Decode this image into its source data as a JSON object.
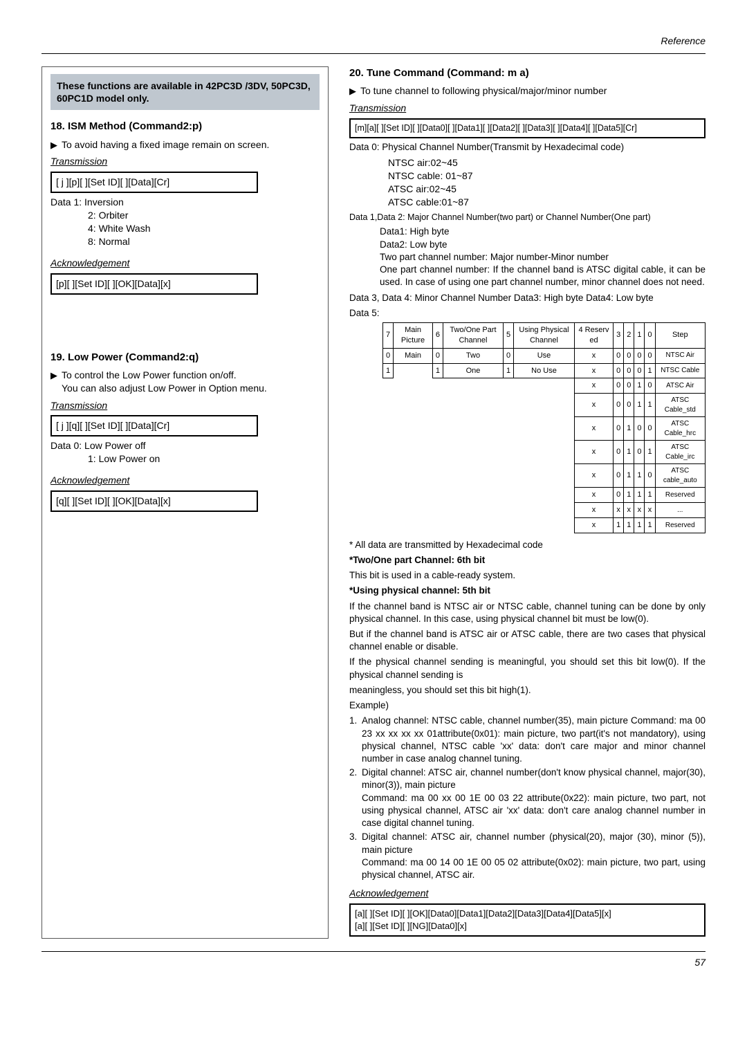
{
  "reference": "Reference",
  "left": {
    "note": "These functions are available in 42PC3D /3DV, 50PC3D, 60PC1D model only.",
    "section18": {
      "title": "18. ISM Method (Command2:p)",
      "desc": "To avoid having a fixed image remain on screen.",
      "transmission_label": "Transmission",
      "syntax_tx": "[ j ][p][  ][Set ID][  ][Data][Cr]",
      "data_header": "Data  1: Inversion",
      "data_items": [
        "2: Orbiter",
        "4: White Wash",
        "8: Normal"
      ],
      "ack_label": "Acknowledgement",
      "syntax_ack": "[p][  ][Set ID][  ][OK][Data][x]"
    },
    "section19": {
      "title": "19. Low Power (Command2:q)",
      "desc1": "To control the Low Power function on/off.",
      "desc2": "You can also adjust Low Power in Option menu.",
      "transmission_label": "Transmission",
      "syntax_tx": "[ j ][q][  ][Set ID][  ][Data][Cr]",
      "data_header": "Data  0: Low Power off",
      "data_items": [
        "1: Low Power on"
      ],
      "ack_label": "Acknowledgement",
      "syntax_ack": "[q][  ][Set ID][  ][OK][Data][x]"
    }
  },
  "right": {
    "title": "20. Tune Command (Command: m a)",
    "desc": "To tune channel to following physical/major/minor number",
    "transmission_label": "Transmission",
    "syntax_tx": "[m][a][ ][Set ID][ ][Data0][ ][Data1][ ][Data2][ ][Data3][ ][Data4][ ][Data5][Cr]",
    "data0_header": "Data  0: Physical Channel Number(Transmit by Hexadecimal code)",
    "data0_items": [
      "NTSC air:02~45",
      "NTSC cable: 01~87",
      "ATSC air:02~45",
      "ATSC cable:01~87"
    ],
    "data12_header": "Data 1,Data 2: Major Channel Number(two part) or Channel Number(One part)",
    "data12_items": [
      "Data1: High byte",
      "Data2: Low byte",
      "Two part channel number: Major number-Minor number",
      "One part channel number: If the channel band is ATSC digital cable, it can be used. In case of using one part channel number, minor channel does not need."
    ],
    "data34": "Data 3, Data 4: Minor Channel Number Data3: High byte Data4: Low byte",
    "data5": "Data 5:",
    "table": {
      "header_row1": [
        "7",
        "Main Picture",
        "6",
        "Two/One Part Channel",
        "5",
        "Using Physical Channel",
        "4 Reserv ed",
        "3",
        "2",
        "1",
        "0",
        "Step"
      ],
      "rows": [
        [
          "0",
          "Main",
          "0",
          "Two",
          "0",
          "Use",
          "x",
          "0",
          "0",
          "0",
          "0",
          "NTSC Air"
        ],
        [
          "1",
          "",
          "1",
          "One",
          "1",
          "No Use",
          "x",
          "0",
          "0",
          "0",
          "1",
          "NTSC Cable"
        ],
        [
          "",
          "",
          "",
          "",
          "",
          "",
          "x",
          "0",
          "0",
          "1",
          "0",
          "ATSC Air"
        ],
        [
          "",
          "",
          "",
          "",
          "",
          "",
          "x",
          "0",
          "0",
          "1",
          "1",
          "ATSC Cable_std"
        ],
        [
          "",
          "",
          "",
          "",
          "",
          "",
          "x",
          "0",
          "1",
          "0",
          "0",
          "ATSC Cable_hrc"
        ],
        [
          "",
          "",
          "",
          "",
          "",
          "",
          "x",
          "0",
          "1",
          "0",
          "1",
          "ATSC Cable_irc"
        ],
        [
          "",
          "",
          "",
          "",
          "",
          "",
          "x",
          "0",
          "1",
          "1",
          "0",
          "ATSC cable_auto"
        ],
        [
          "",
          "",
          "",
          "",
          "",
          "",
          "x",
          "0",
          "1",
          "1",
          "1",
          "Reserved"
        ],
        [
          "",
          "",
          "",
          "",
          "",
          "",
          "x",
          "x",
          "x",
          "x",
          "x",
          "..."
        ],
        [
          "",
          "",
          "",
          "",
          "",
          "",
          "x",
          "1",
          "1",
          "1",
          "1",
          "Reserved"
        ]
      ]
    },
    "note_hex": "* All data are transmitted by Hexadecimal code",
    "two_one_h": "*Two/One part Channel: 6th bit",
    "two_one_t": "This bit is used in a cable-ready system.",
    "phys_h": "*Using physical channel: 5th bit",
    "phys_t": "If the channel band is NTSC air or NTSC cable, channel tuning can be done by only physical channel. In this case, using physical channel bit must be low(0).",
    "phys_t2": "But if the channel band is ATSC air or ATSC cable, there are two cases that physical channel enable or disable.",
    "phys_t3": "If the physical channel sending is meaningful, you should set this bit low(0). If the physical channel sending is",
    "phys_t4": "meaningless, you should set this bit high(1).",
    "example_label": "Example)",
    "examples": [
      "Analog channel: NTSC cable, channel number(35), main picture Command: ma 00 23 xx xx xx xx 01attribute(0x01): main picture, two part(it's not mandatory), using physical channel, NTSC cable 'xx' data: don't care major and minor channel number in case analog channel tuning.",
      "Digital channel: ATSC air, channel number(don't know physical channel, major(30), minor(3)), main picture\nCommand: ma 00 xx 00 1E 00 03 22 attribute(0x22): main picture, two part, not using physical channel, ATSC air 'xx' data: don't care analog channel number in case digital channel tuning.",
      "Digital channel: ATSC air, channel number (physical(20), major (30), minor (5)), main picture\nCommand: ma 00 14 00 1E 00 05 02 attribute(0x02): main picture, two part, using physical channel, ATSC air."
    ],
    "ack_label": "Acknowledgement",
    "syntax_ack1": "[a][  ][Set ID][  ][OK][Data0][Data1][Data2][Data3][Data4][Data5][x]",
    "syntax_ack2": "[a][  ][Set ID][  ][NG][Data0][x]"
  },
  "page": "57"
}
